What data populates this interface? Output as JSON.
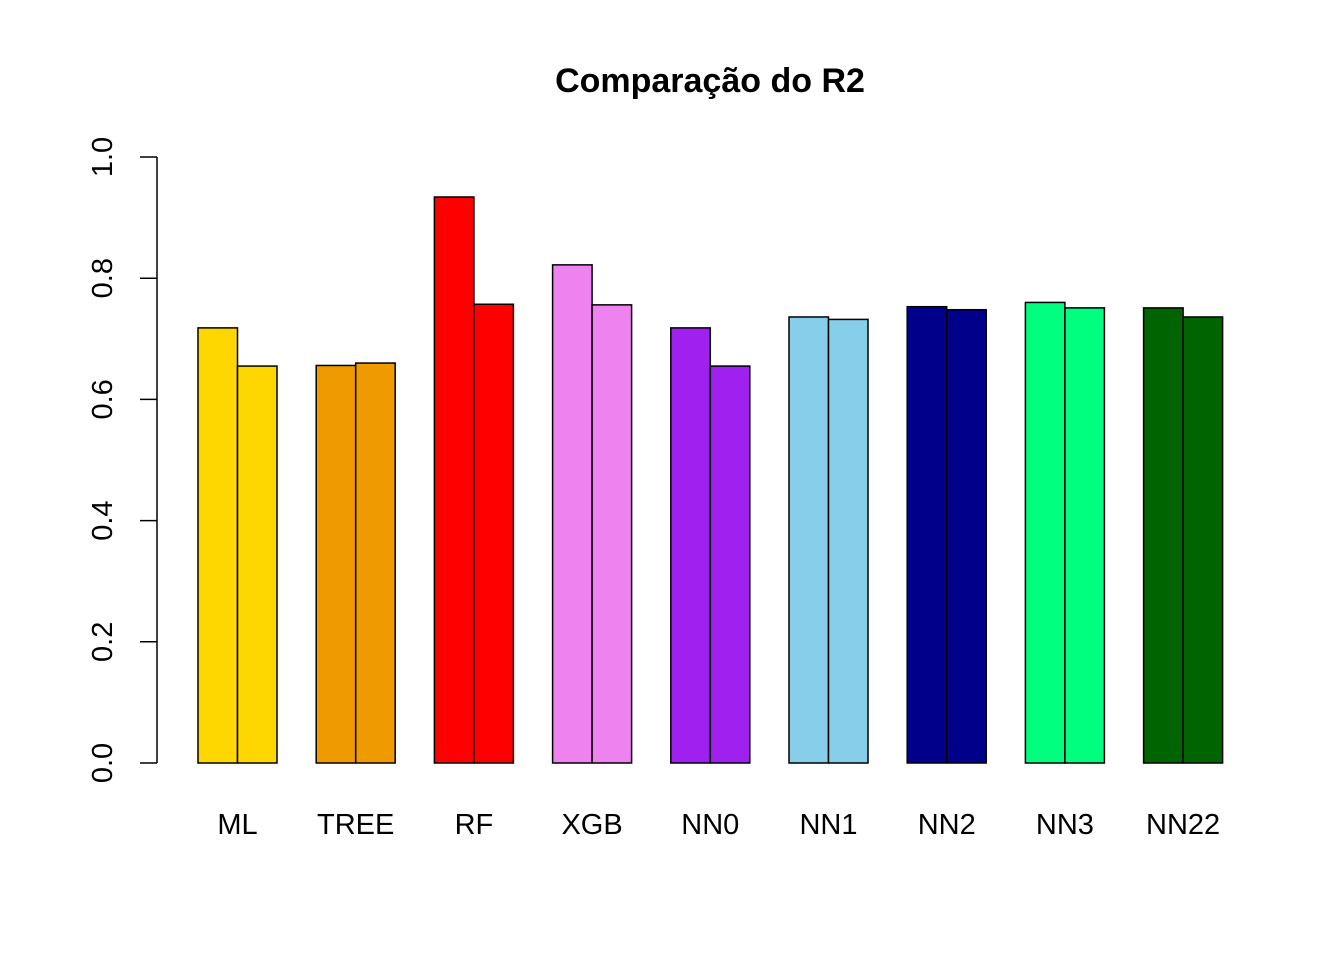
{
  "chart_data": {
    "type": "bar",
    "title": "Comparação do R2",
    "xlabel": "",
    "ylabel": "",
    "ylim": [
      0,
      1
    ],
    "yticks": [
      "0.0",
      "0.2",
      "0.4",
      "0.6",
      "0.8",
      "1.0"
    ],
    "grid": false,
    "legend": "none",
    "categories": [
      "ML",
      "TREE",
      "RF",
      "XGB",
      "NN0",
      "NN1",
      "NN2",
      "NN3",
      "NN22"
    ],
    "colors": [
      "#FFD700",
      "#EE9A00",
      "#FF0000",
      "#EE82EE",
      "#A020F0",
      "#87CEEB",
      "#00008B",
      "#00FF7F",
      "#006400"
    ],
    "series": [
      {
        "values": [
          0.718,
          0.656,
          0.934,
          0.822,
          0.718,
          0.736,
          0.753,
          0.76,
          0.751
        ]
      },
      {
        "values": [
          0.655,
          0.66,
          0.757,
          0.756,
          0.655,
          0.732,
          0.748,
          0.751,
          0.736
        ]
      }
    ]
  }
}
